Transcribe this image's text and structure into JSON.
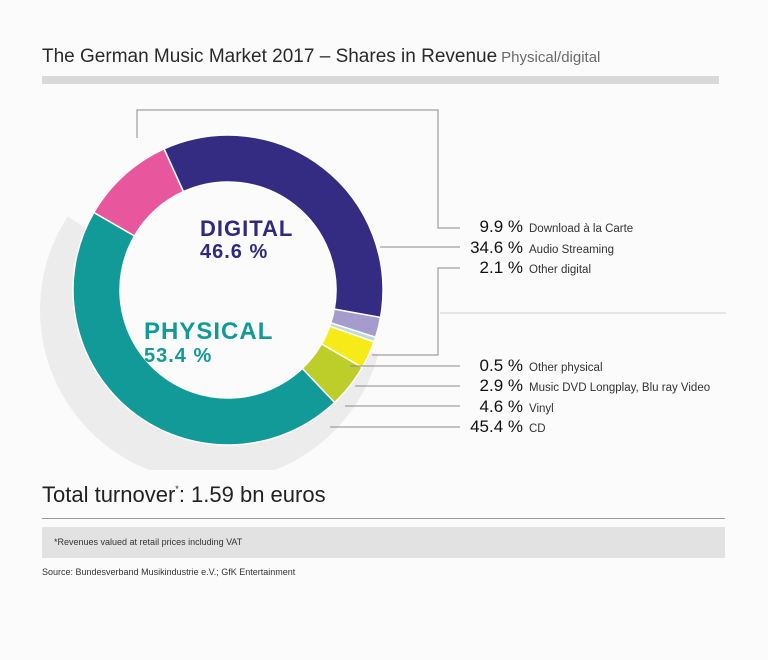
{
  "title": "The German Music Market 2017 – Shares in Revenue",
  "subtitle": "Physical/digital",
  "chart_data": {
    "type": "pie",
    "style": "donut",
    "groups": [
      {
        "name": "DIGITAL",
        "value_label": "46.6 %",
        "color": "#2f2a7c"
      },
      {
        "name": "PHYSICAL",
        "value_label": "53.4 %",
        "color": "#129a98"
      }
    ],
    "slices": [
      {
        "label": "Download à la Carte",
        "value": 9.9,
        "value_label": "9.9 %",
        "group": "DIGITAL",
        "color": "#e8579d"
      },
      {
        "label": "Audio Streaming",
        "value": 34.6,
        "value_label": "34.6 %",
        "group": "DIGITAL",
        "color": "#342c82"
      },
      {
        "label": "Other digital",
        "value": 2.1,
        "value_label": "2.1 %",
        "group": "DIGITAL",
        "color": "#a59ccd"
      },
      {
        "label": "Other physical",
        "value": 0.5,
        "value_label": "0.5 %",
        "group": "PHYSICAL",
        "color": "#b9ddd8"
      },
      {
        "label": "Music DVD Longplay, Blu ray Video",
        "value": 2.9,
        "value_label": "2.9 %",
        "group": "PHYSICAL",
        "color": "#f7ea19"
      },
      {
        "label": "Vinyl",
        "value": 4.6,
        "value_label": "4.6 %",
        "group": "PHYSICAL",
        "color": "#bdcd2a"
      },
      {
        "label": "CD",
        "value": 45.4,
        "value_label": "45.4 %",
        "group": "PHYSICAL",
        "color": "#129a98"
      }
    ]
  },
  "total": {
    "label": "Total turnover",
    "footnote_mark": "*",
    "value": ": 1.59 bn euros"
  },
  "footnote": "*Revenues valued at retail prices including VAT",
  "source": "Source: Bundesverband Musikindustrie e.V.; GfK Entertainment"
}
